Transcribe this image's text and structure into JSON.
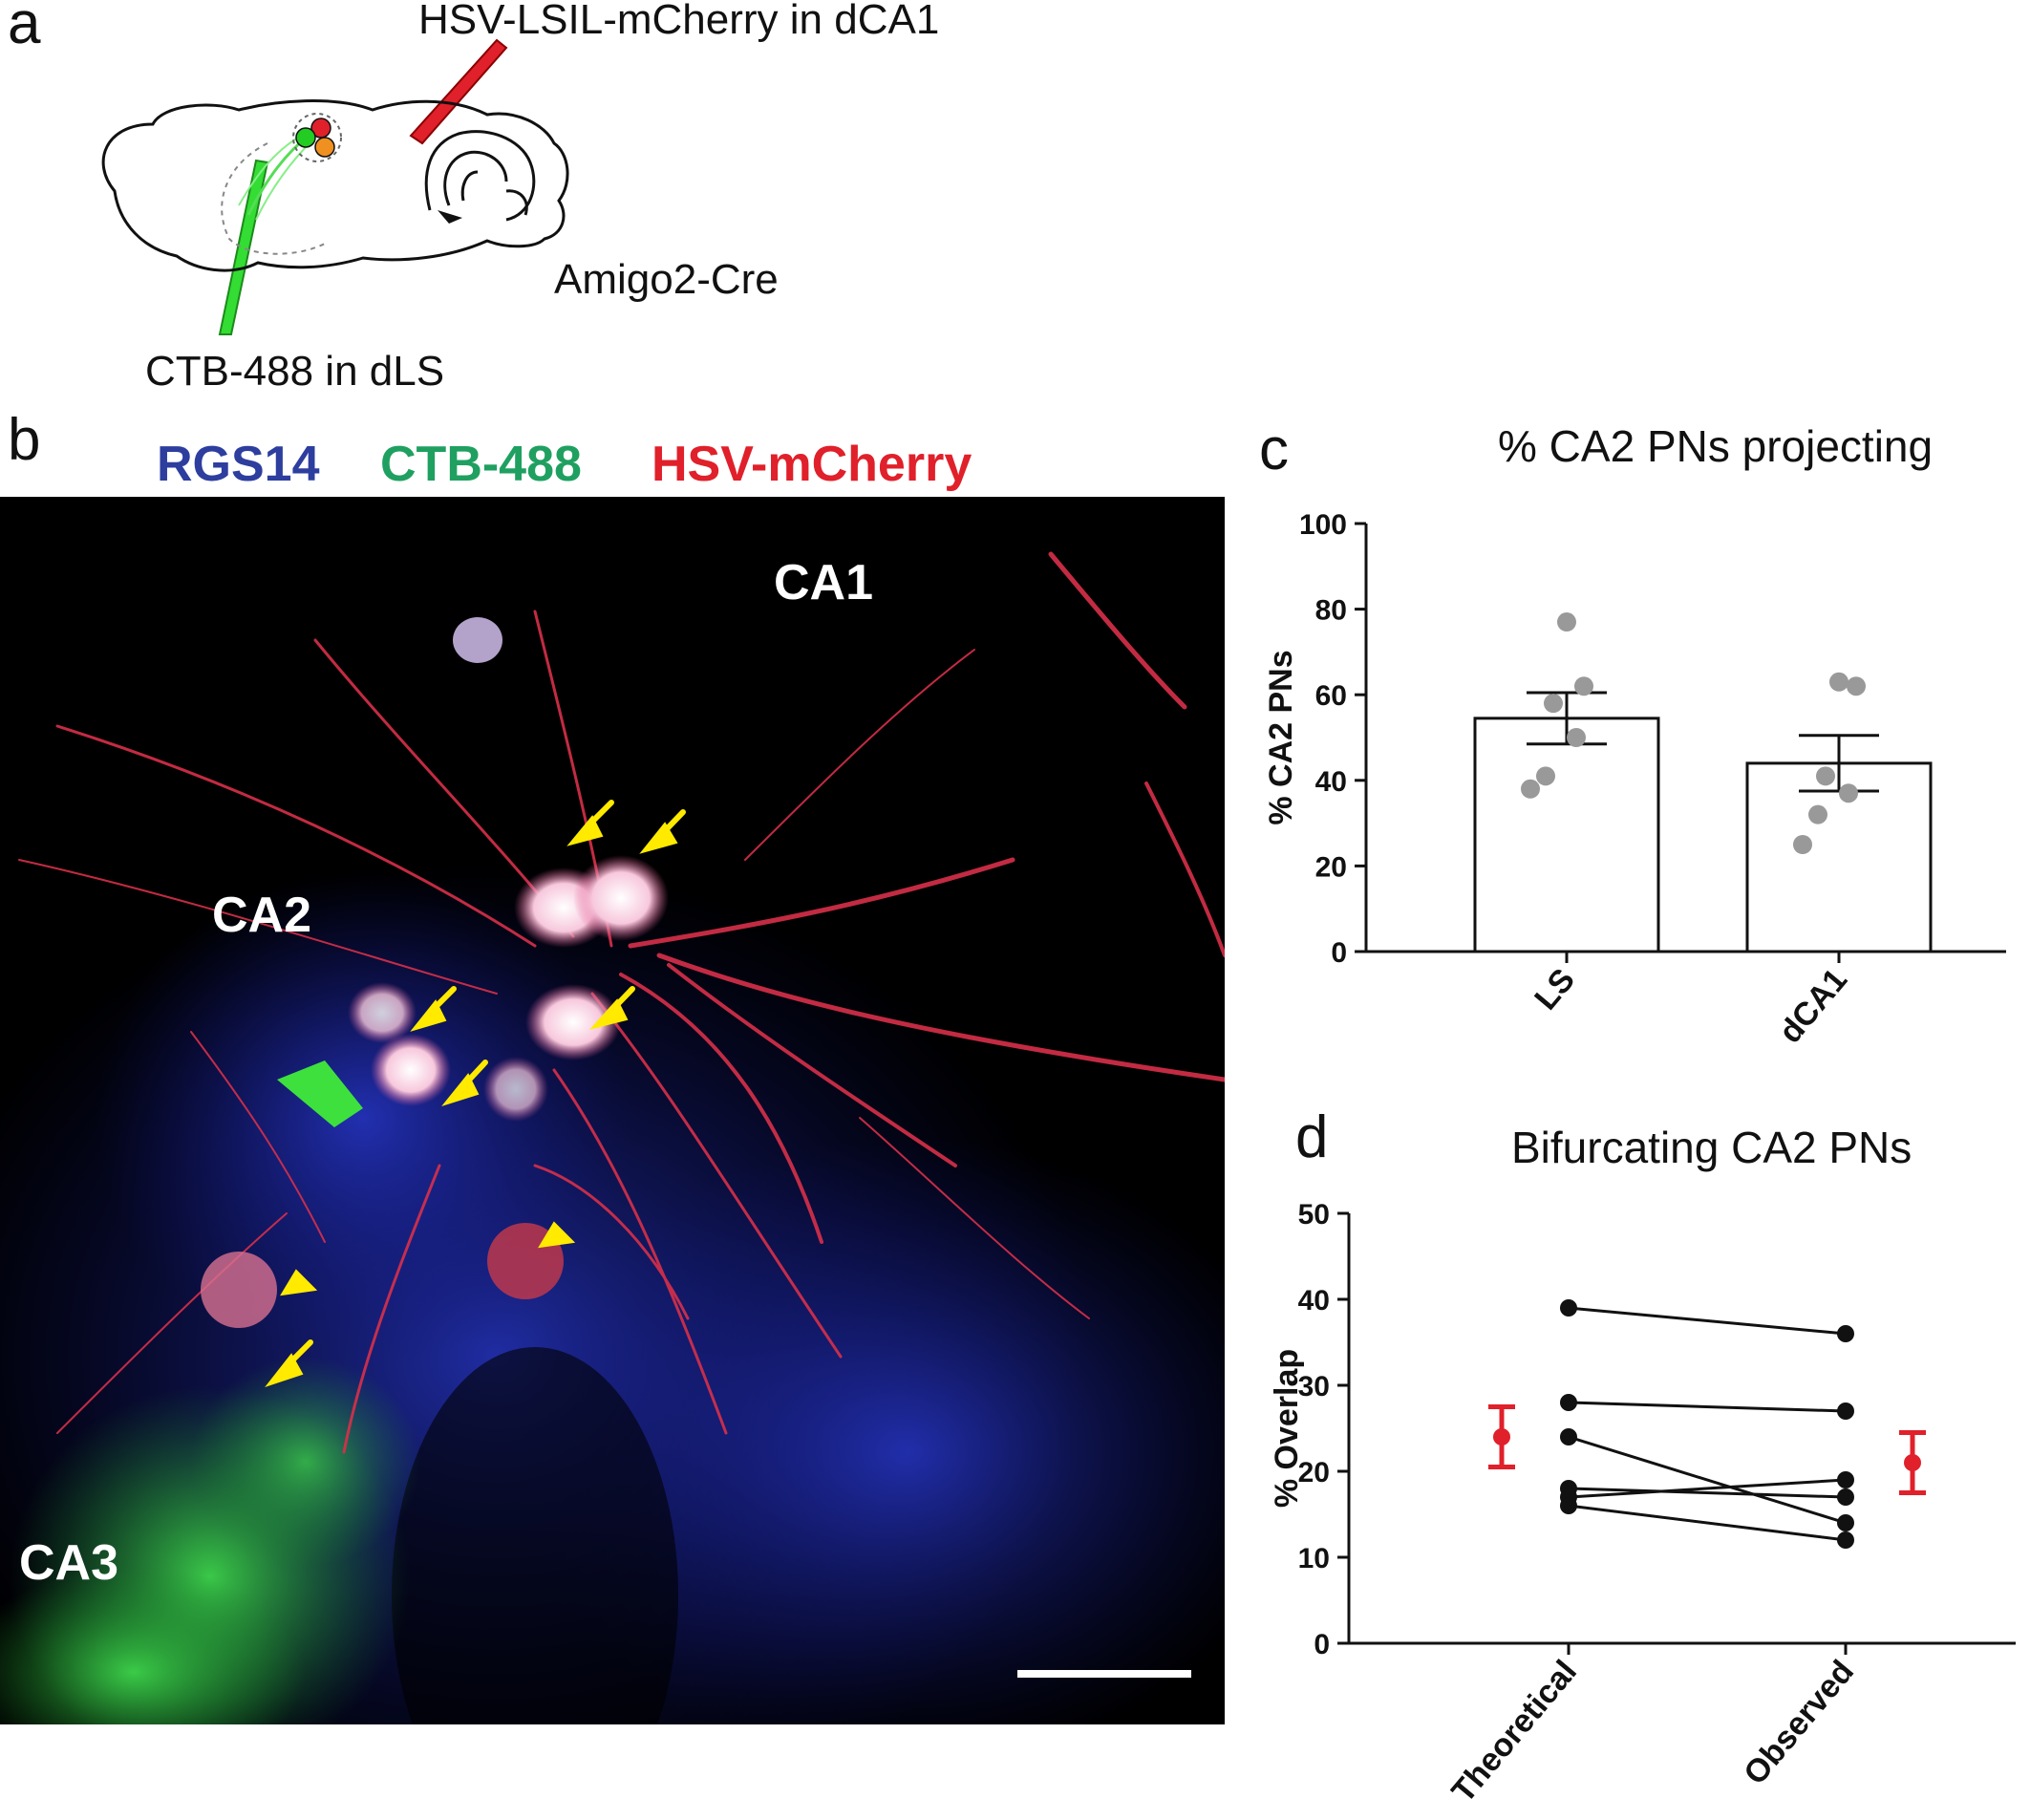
{
  "panel_a": {
    "label": "a",
    "injection_dca1": "HSV-LSIL-mCherry in dCA1",
    "mouse_line": "Amigo2-Cre",
    "injection_dls": "CTB-488 in dLS"
  },
  "panel_b": {
    "label": "b",
    "legend": [
      {
        "text": "RGS14",
        "color": "#2d3e9f"
      },
      {
        "text": "CTB-488",
        "color": "#1fa060"
      },
      {
        "text": "HSV-mCherry",
        "color": "#e0202a"
      }
    ],
    "regions": {
      "ca1": "CA1",
      "ca2": "CA2",
      "ca3": "CA3"
    }
  },
  "panel_c": {
    "label": "c",
    "chart_data": {
      "type": "bar",
      "title": "% CA2 PNs projecting",
      "ylabel": "% CA2 PNs",
      "categories": [
        "LS",
        "dCA1"
      ],
      "values": [
        54.5,
        44
      ],
      "error": [
        6,
        6.5
      ],
      "points": [
        [
          77,
          62,
          58,
          50,
          41,
          38
        ],
        [
          63,
          62,
          41,
          37,
          32,
          25
        ]
      ],
      "ylim": [
        0,
        100
      ],
      "yticks": [
        0,
        20,
        40,
        60,
        80,
        100
      ]
    }
  },
  "panel_d": {
    "label": "d",
    "chart_data": {
      "type": "line",
      "title": "Bifurcating CA2 PNs",
      "ylabel": "% Overlap",
      "categories": [
        "Theoretical",
        "Observed"
      ],
      "pairs": [
        [
          39,
          36
        ],
        [
          28,
          27
        ],
        [
          24,
          14
        ],
        [
          18,
          17
        ],
        [
          17,
          19
        ],
        [
          16,
          12
        ]
      ],
      "summary": [
        {
          "category": "Theoretical",
          "mean": 24,
          "low": 20.5,
          "high": 27.5,
          "color": "#e0202a"
        },
        {
          "category": "Observed",
          "mean": 21,
          "low": 17.5,
          "high": 24.5,
          "color": "#e0202a"
        }
      ],
      "ylim": [
        0,
        50
      ],
      "yticks": [
        0,
        10,
        20,
        30,
        40,
        50
      ]
    }
  }
}
